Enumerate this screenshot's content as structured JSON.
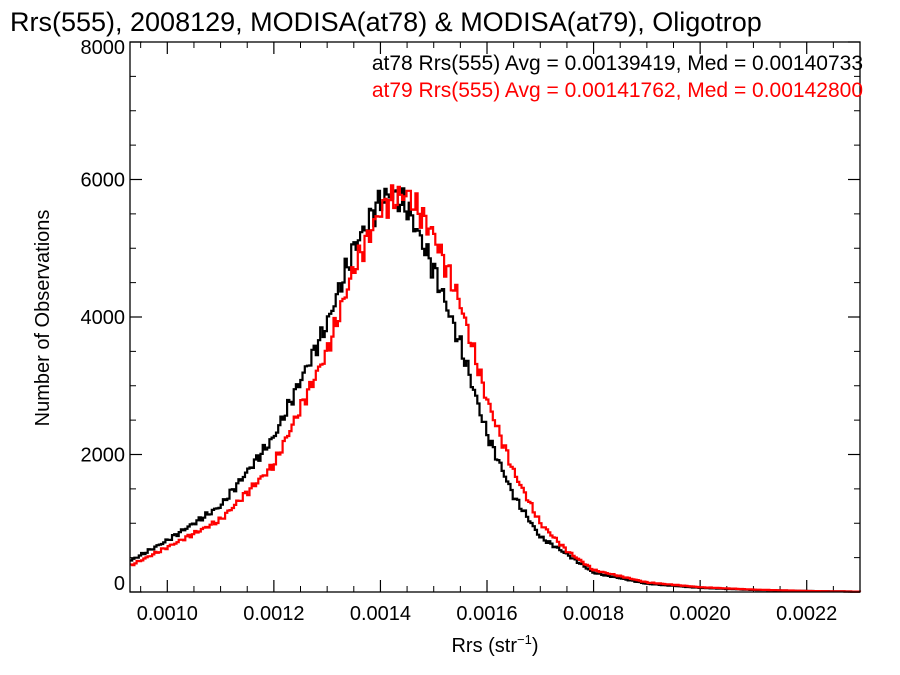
{
  "chart_data": {
    "type": "line",
    "title": "Rrs(555), 2008129, MODISA(at78) & MODISA(at79), Oligotrop",
    "xlabel": "Rrs (str",
    "xlabel_sup": "−1",
    "xlabel_close": ")",
    "ylabel": "Number of Observations",
    "xlim": [
      0.00093,
      0.0023
    ],
    "ylim": [
      0,
      8000
    ],
    "grid": false,
    "x_ticks": [
      0.001,
      0.0012,
      0.0014,
      0.0016,
      0.0018,
      0.002,
      0.0022
    ],
    "x_tick_labels": [
      "0.0010",
      "0.0012",
      "0.0014",
      "0.0016",
      "0.0018",
      "0.0020",
      "0.0022"
    ],
    "y_ticks": [
      0,
      2000,
      4000,
      6000,
      8000
    ],
    "y_tick_labels": [
      "0",
      "2000",
      "4000",
      "6000",
      "8000"
    ],
    "legend_placement": "top-right",
    "series": [
      {
        "name": "at78",
        "legend": "at78 Rrs(555) Avg = 0.00139419, Med = 0.00140733",
        "color": "#000000",
        "style": "step",
        "x": [
          0.00093,
          0.001,
          0.0011,
          0.0012,
          0.0013,
          0.00135,
          0.0014,
          0.00142,
          0.00145,
          0.0015,
          0.00155,
          0.0016,
          0.00165,
          0.0017,
          0.00175,
          0.0018,
          0.0019,
          0.002,
          0.0021,
          0.0022,
          0.0023
        ],
        "y": [
          450,
          750,
          1250,
          2250,
          3900,
          5000,
          5700,
          5800,
          5600,
          4700,
          3600,
          2300,
          1400,
          800,
          550,
          280,
          120,
          60,
          30,
          15,
          5
        ]
      },
      {
        "name": "at79",
        "legend": "at79 Rrs(555) Avg = 0.00141762, Med = 0.00142800",
        "color": "#ff0000",
        "style": "step",
        "x": [
          0.00093,
          0.001,
          0.0011,
          0.0012,
          0.0013,
          0.00135,
          0.0014,
          0.00142,
          0.00145,
          0.0015,
          0.00155,
          0.0016,
          0.00165,
          0.0017,
          0.00175,
          0.0018,
          0.0019,
          0.002,
          0.0021,
          0.0022,
          0.0023
        ],
        "y": [
          380,
          650,
          1050,
          1850,
          3500,
          4700,
          5550,
          5700,
          5800,
          5200,
          4200,
          2800,
          1750,
          1000,
          600,
          320,
          140,
          70,
          35,
          15,
          5
        ]
      }
    ]
  }
}
